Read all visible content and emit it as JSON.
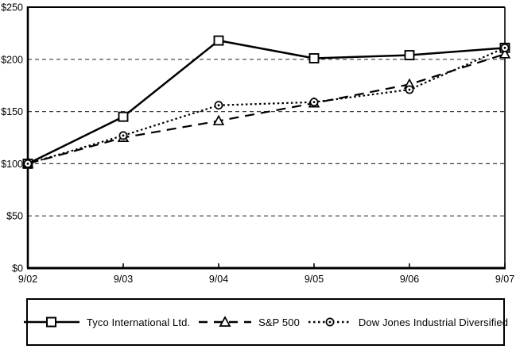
{
  "page": {
    "background_color": "#ffffff",
    "foreground_color": "#000000",
    "grid_color": "#3a3a3a"
  },
  "chart_data": {
    "type": "line",
    "title": "",
    "xlabel": "",
    "ylabel": "",
    "categories": [
      "9/02",
      "9/03",
      "9/04",
      "9/05",
      "9/06",
      "9/07"
    ],
    "series": [
      {
        "name": "Tyco International Ltd.",
        "marker": "square",
        "line_style": "solid",
        "values": [
          100,
          145,
          218,
          201,
          204,
          211
        ]
      },
      {
        "name": "S&P 500",
        "marker": "triangle",
        "line_style": "dashed",
        "values": [
          100,
          125,
          141,
          158,
          176,
          205
        ]
      },
      {
        "name": "Dow Jones Industrial Diversified",
        "marker": "circle",
        "line_style": "dotted",
        "values": [
          100,
          127,
          156,
          159,
          171,
          211
        ]
      }
    ],
    "ylim": [
      0,
      250
    ],
    "yticks": [
      {
        "value": 0,
        "label": "$0"
      },
      {
        "value": 50,
        "label": "$50"
      },
      {
        "value": 100,
        "label": "$100"
      },
      {
        "value": 150,
        "label": "$150"
      },
      {
        "value": 200,
        "label": "$200"
      },
      {
        "value": 250,
        "label": "$250"
      }
    ],
    "grid": "horizontal-dashed",
    "legend_position": "bottom-box"
  }
}
